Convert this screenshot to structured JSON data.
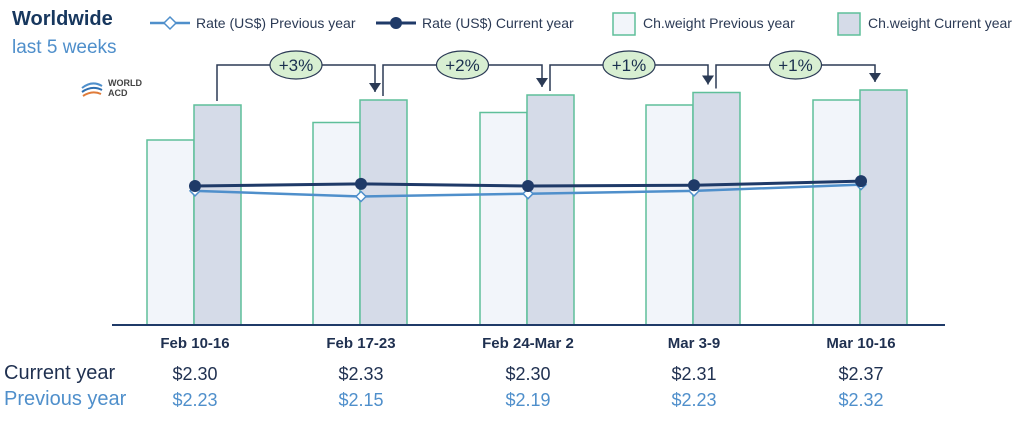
{
  "header": {
    "title": "Worldwide",
    "subtitle": "last 5 weeks",
    "logo_text_line1": "WORLD",
    "logo_text_line2": "ACD"
  },
  "colors": {
    "bar_prev_fill": "#f2f5fa",
    "bar_cur_fill": "#d5dbe8",
    "bar_stroke": "#5fbf9a",
    "line_prev": "#4f8fcb",
    "line_cur": "#1f3a68",
    "pct_fill": "#d8efd2",
    "axis": "#1f3a68"
  },
  "chart_data": {
    "type": "bar",
    "categories": [
      "Feb 10-16",
      "Feb 17-23",
      "Feb 24-Mar 2",
      "Mar 3-9",
      "Mar 10-16"
    ],
    "series": [
      {
        "name": "Ch.weight Previous year",
        "type": "bar",
        "values": [
          0.74,
          0.81,
          0.85,
          0.88,
          0.9
        ]
      },
      {
        "name": "Ch.weight Current year",
        "type": "bar",
        "values": [
          0.88,
          0.9,
          0.92,
          0.93,
          0.94
        ]
      },
      {
        "name": "Rate (US$) Previous year",
        "type": "line",
        "values": [
          2.23,
          2.15,
          2.19,
          2.23,
          2.32
        ]
      },
      {
        "name": "Rate (US$) Current year",
        "type": "line",
        "values": [
          2.3,
          2.33,
          2.3,
          2.31,
          2.37
        ]
      }
    ],
    "changes": [
      "+3%",
      "+2%",
      "+1%",
      "+1%"
    ],
    "legend": [
      "Rate (US$) Previous year",
      "Rate (US$) Current year",
      "Ch.weight Previous year",
      "Ch.weight Current year"
    ],
    "legend_position": "top",
    "grid": false
  },
  "table": {
    "current_label": "Current year",
    "previous_label": "Previous year",
    "current": [
      "$2.30",
      "$2.33",
      "$2.30",
      "$2.31",
      "$2.37"
    ],
    "previous": [
      "$2.23",
      "$2.15",
      "$2.19",
      "$2.23",
      "$2.32"
    ]
  }
}
